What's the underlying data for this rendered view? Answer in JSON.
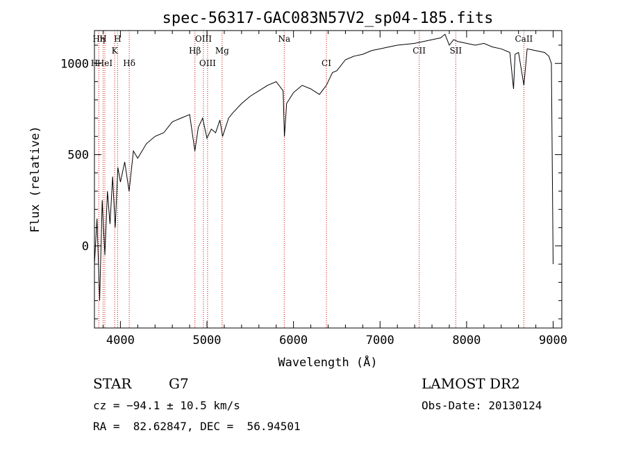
{
  "chart_data": {
    "type": "line",
    "title": "spec-56317-GAC083N57V2_sp04-185.fits",
    "xlabel": "Wavelength (Å)",
    "ylabel": "Flux (relative)",
    "xlim": [
      3700,
      9100
    ],
    "ylim": [
      -450,
      1180
    ],
    "x_ticks": [
      4000,
      5000,
      6000,
      7000,
      8000,
      9000
    ],
    "x_tick_labels": [
      "4000",
      "5000",
      "6000",
      "7000",
      "8000",
      "9000"
    ],
    "y_ticks": [
      0,
      500,
      1000
    ],
    "y_tick_labels": [
      "0",
      "500",
      "1000"
    ],
    "grid": false,
    "series": [
      {
        "x": [
          3700,
          3730,
          3760,
          3790,
          3820,
          3850,
          3880,
          3910,
          3940,
          3970,
          4000,
          4050,
          4100,
          4150,
          4200,
          4300,
          4400,
          4500,
          4600,
          4700,
          4800,
          4860,
          4900,
          4950,
          5000,
          5050,
          5100,
          5150,
          5180,
          5250,
          5300,
          5400,
          5500,
          5600,
          5700,
          5800,
          5880,
          5895,
          5920,
          6000,
          6100,
          6200,
          6300,
          6380,
          6450,
          6500,
          6600,
          6700,
          6800,
          6900,
          7000,
          7100,
          7200,
          7300,
          7400,
          7500,
          7600,
          7700,
          7750,
          7800,
          7850,
          7900,
          8000,
          8100,
          8200,
          8300,
          8400,
          8500,
          8542,
          8560,
          8600,
          8662,
          8700,
          8800,
          8900,
          8950,
          8980,
          9000
        ],
        "y": [
          -100,
          150,
          -300,
          250,
          -50,
          300,
          120,
          380,
          100,
          430,
          350,
          460,
          300,
          520,
          480,
          560,
          600,
          620,
          680,
          700,
          720,
          520,
          650,
          700,
          590,
          640,
          620,
          690,
          600,
          700,
          730,
          780,
          820,
          850,
          880,
          900,
          850,
          600,
          780,
          840,
          880,
          860,
          830,
          880,
          950,
          960,
          1020,
          1040,
          1050,
          1070,
          1080,
          1090,
          1100,
          1105,
          1110,
          1120,
          1130,
          1140,
          1160,
          1100,
          1130,
          1120,
          1110,
          1100,
          1110,
          1090,
          1080,
          1060,
          860,
          1050,
          1060,
          880,
          1080,
          1070,
          1060,
          1040,
          1000,
          -100
        ]
      }
    ],
    "lines": [
      {
        "x": 3750,
        "label": "Hη",
        "row": 0
      },
      {
        "x": 3800,
        "label": "H",
        "row": 0
      },
      {
        "x": 3934,
        "label": "K",
        "row": 1
      },
      {
        "x": 3968,
        "label": "H",
        "row": 0
      },
      {
        "x": 3700,
        "label": "H",
        "row": 2
      },
      {
        "x": 3820,
        "label": "HeI",
        "row": 2
      },
      {
        "x": 4102,
        "label": "Hδ",
        "row": 2
      },
      {
        "x": 4861,
        "label": "Hβ",
        "row": 1
      },
      {
        "x": 4959,
        "label": "OIII",
        "row": 0
      },
      {
        "x": 5007,
        "label": "OIII",
        "row": 2
      },
      {
        "x": 5175,
        "label": "Mg",
        "row": 1
      },
      {
        "x": 5893,
        "label": "Na",
        "row": 0
      },
      {
        "x": 6380,
        "label": "CI",
        "row": 2
      },
      {
        "x": 7452,
        "label": "CII",
        "row": 1
      },
      {
        "x": 7875,
        "label": "SII",
        "row": 1
      },
      {
        "x": 8662,
        "label": "CaII",
        "row": 0
      }
    ]
  },
  "info": {
    "object_class": "STAR",
    "subclass": "G7",
    "cz": "cz = −94.1 ± 10.5 km/s",
    "coords": "RA =  82.62847, DEC =  56.94501",
    "survey": "LAMOST DR2",
    "obs_date": "Obs-Date: 20130124"
  },
  "colors": {
    "spectrum": "#000000",
    "line_markers": "#cc0000"
  }
}
